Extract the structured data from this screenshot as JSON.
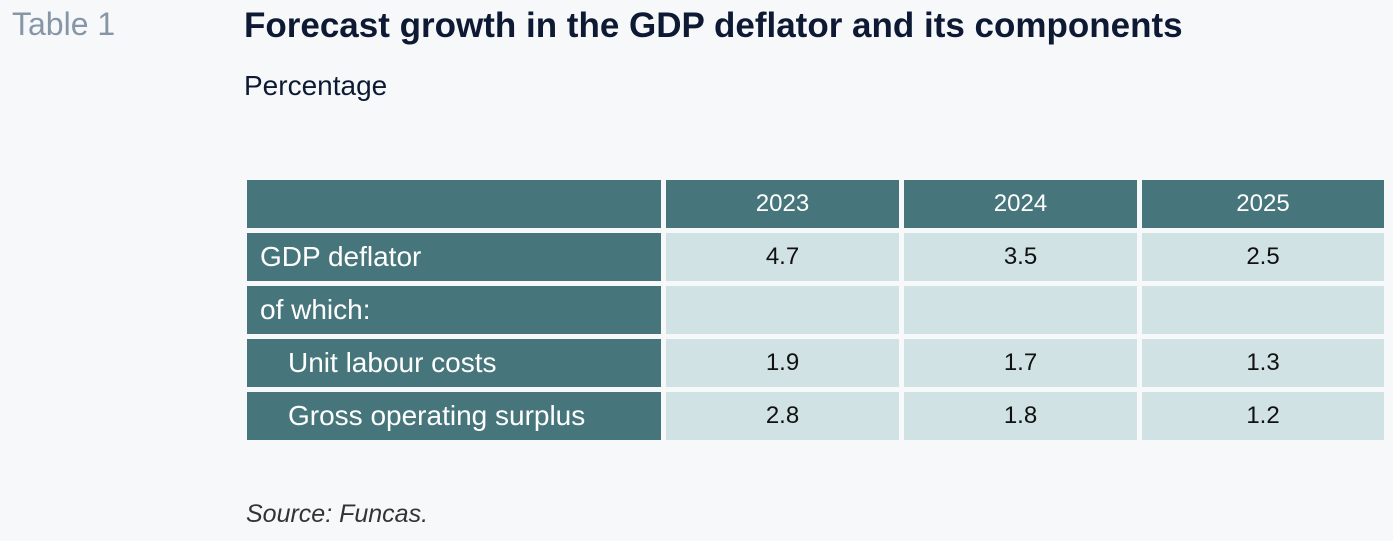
{
  "header": {
    "table_number": "Table 1",
    "title": "Forecast growth in the GDP deflator and its components",
    "subtitle": "Percentage"
  },
  "table": {
    "columns": [
      "",
      "2023",
      "2024",
      "2025"
    ],
    "rows": [
      {
        "label": "GDP deflator",
        "values": [
          "4.7",
          "3.5",
          "2.5"
        ]
      },
      {
        "label": "of which:",
        "values": [
          "",
          "",
          ""
        ]
      },
      {
        "label": "Unit labour costs",
        "values": [
          "1.9",
          "1.7",
          "1.3"
        ]
      },
      {
        "label": "Gross operating surplus",
        "values": [
          "2.8",
          "1.8",
          "1.2"
        ]
      }
    ]
  },
  "footer": {
    "source": "Source: Funcas."
  },
  "colors": {
    "header_fill": "#46767b",
    "cell_fill": "#d1e2e4",
    "title_text": "#0e1a33",
    "table_number_text": "#8796a6"
  }
}
